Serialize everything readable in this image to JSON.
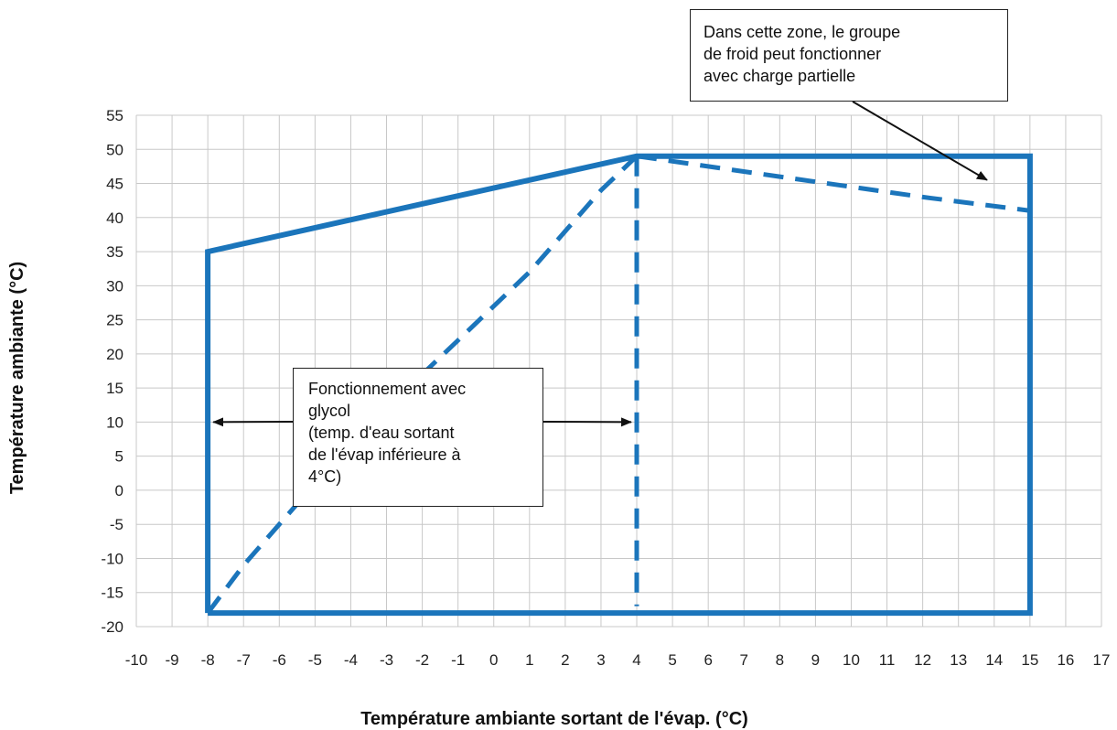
{
  "chart_data": {
    "type": "line",
    "xlabel": "Température ambiante sortant de l'évap. (°C)",
    "ylabel": "Température ambiante (°C)",
    "xlim": [
      -10,
      17
    ],
    "ylim": [
      -20,
      55
    ],
    "x_ticks": [
      -10,
      -9,
      -8,
      -7,
      -6,
      -5,
      -4,
      -3,
      -2,
      -1,
      0,
      1,
      2,
      3,
      4,
      5,
      6,
      7,
      8,
      9,
      10,
      11,
      12,
      13,
      14,
      15,
      16,
      17
    ],
    "y_ticks": [
      55,
      50,
      45,
      40,
      35,
      30,
      25,
      20,
      15,
      10,
      5,
      0,
      -5,
      -10,
      -15,
      -20
    ],
    "grid": true,
    "line_color": "#1b75bb",
    "series": [
      {
        "style": "solid",
        "points": [
          [
            -8,
            -18
          ],
          [
            -8,
            35
          ],
          [
            4,
            49
          ],
          [
            15,
            49
          ],
          [
            15,
            -18
          ],
          [
            -8,
            -18
          ]
        ]
      },
      {
        "style": "dashed",
        "points": [
          [
            -8,
            -18
          ],
          [
            -7,
            -11
          ],
          [
            -6,
            -5
          ],
          [
            -5,
            1
          ],
          [
            -4,
            7
          ],
          [
            -3,
            12
          ],
          [
            -2,
            17
          ],
          [
            -1,
            22
          ],
          [
            0,
            27
          ],
          [
            1,
            32
          ],
          [
            2,
            38
          ],
          [
            3,
            44
          ],
          [
            4,
            49
          ]
        ]
      },
      {
        "style": "dashed",
        "points": [
          [
            4,
            49
          ],
          [
            4,
            -17
          ]
        ]
      },
      {
        "style": "dashed",
        "points": [
          [
            4,
            49
          ],
          [
            8,
            46
          ],
          [
            12,
            43
          ],
          [
            15,
            41
          ]
        ]
      }
    ],
    "annotations": [
      {
        "id": "partial-load",
        "lines": [
          "Dans cette zone, le groupe",
          "de froid peut fonctionner",
          "avec charge partielle"
        ],
        "arrows": [
          {
            "to": [
              13.8,
              45.5
            ]
          }
        ]
      },
      {
        "id": "glycol",
        "lines": [
          "Fonctionnement avec",
          "glycol",
          "(temp. d'eau sortant",
          "de l'évap inférieure à",
          "4°C)"
        ],
        "arrows": [
          {
            "to": [
              -8,
              10
            ]
          },
          {
            "to": [
              4,
              10
            ]
          }
        ]
      }
    ]
  }
}
